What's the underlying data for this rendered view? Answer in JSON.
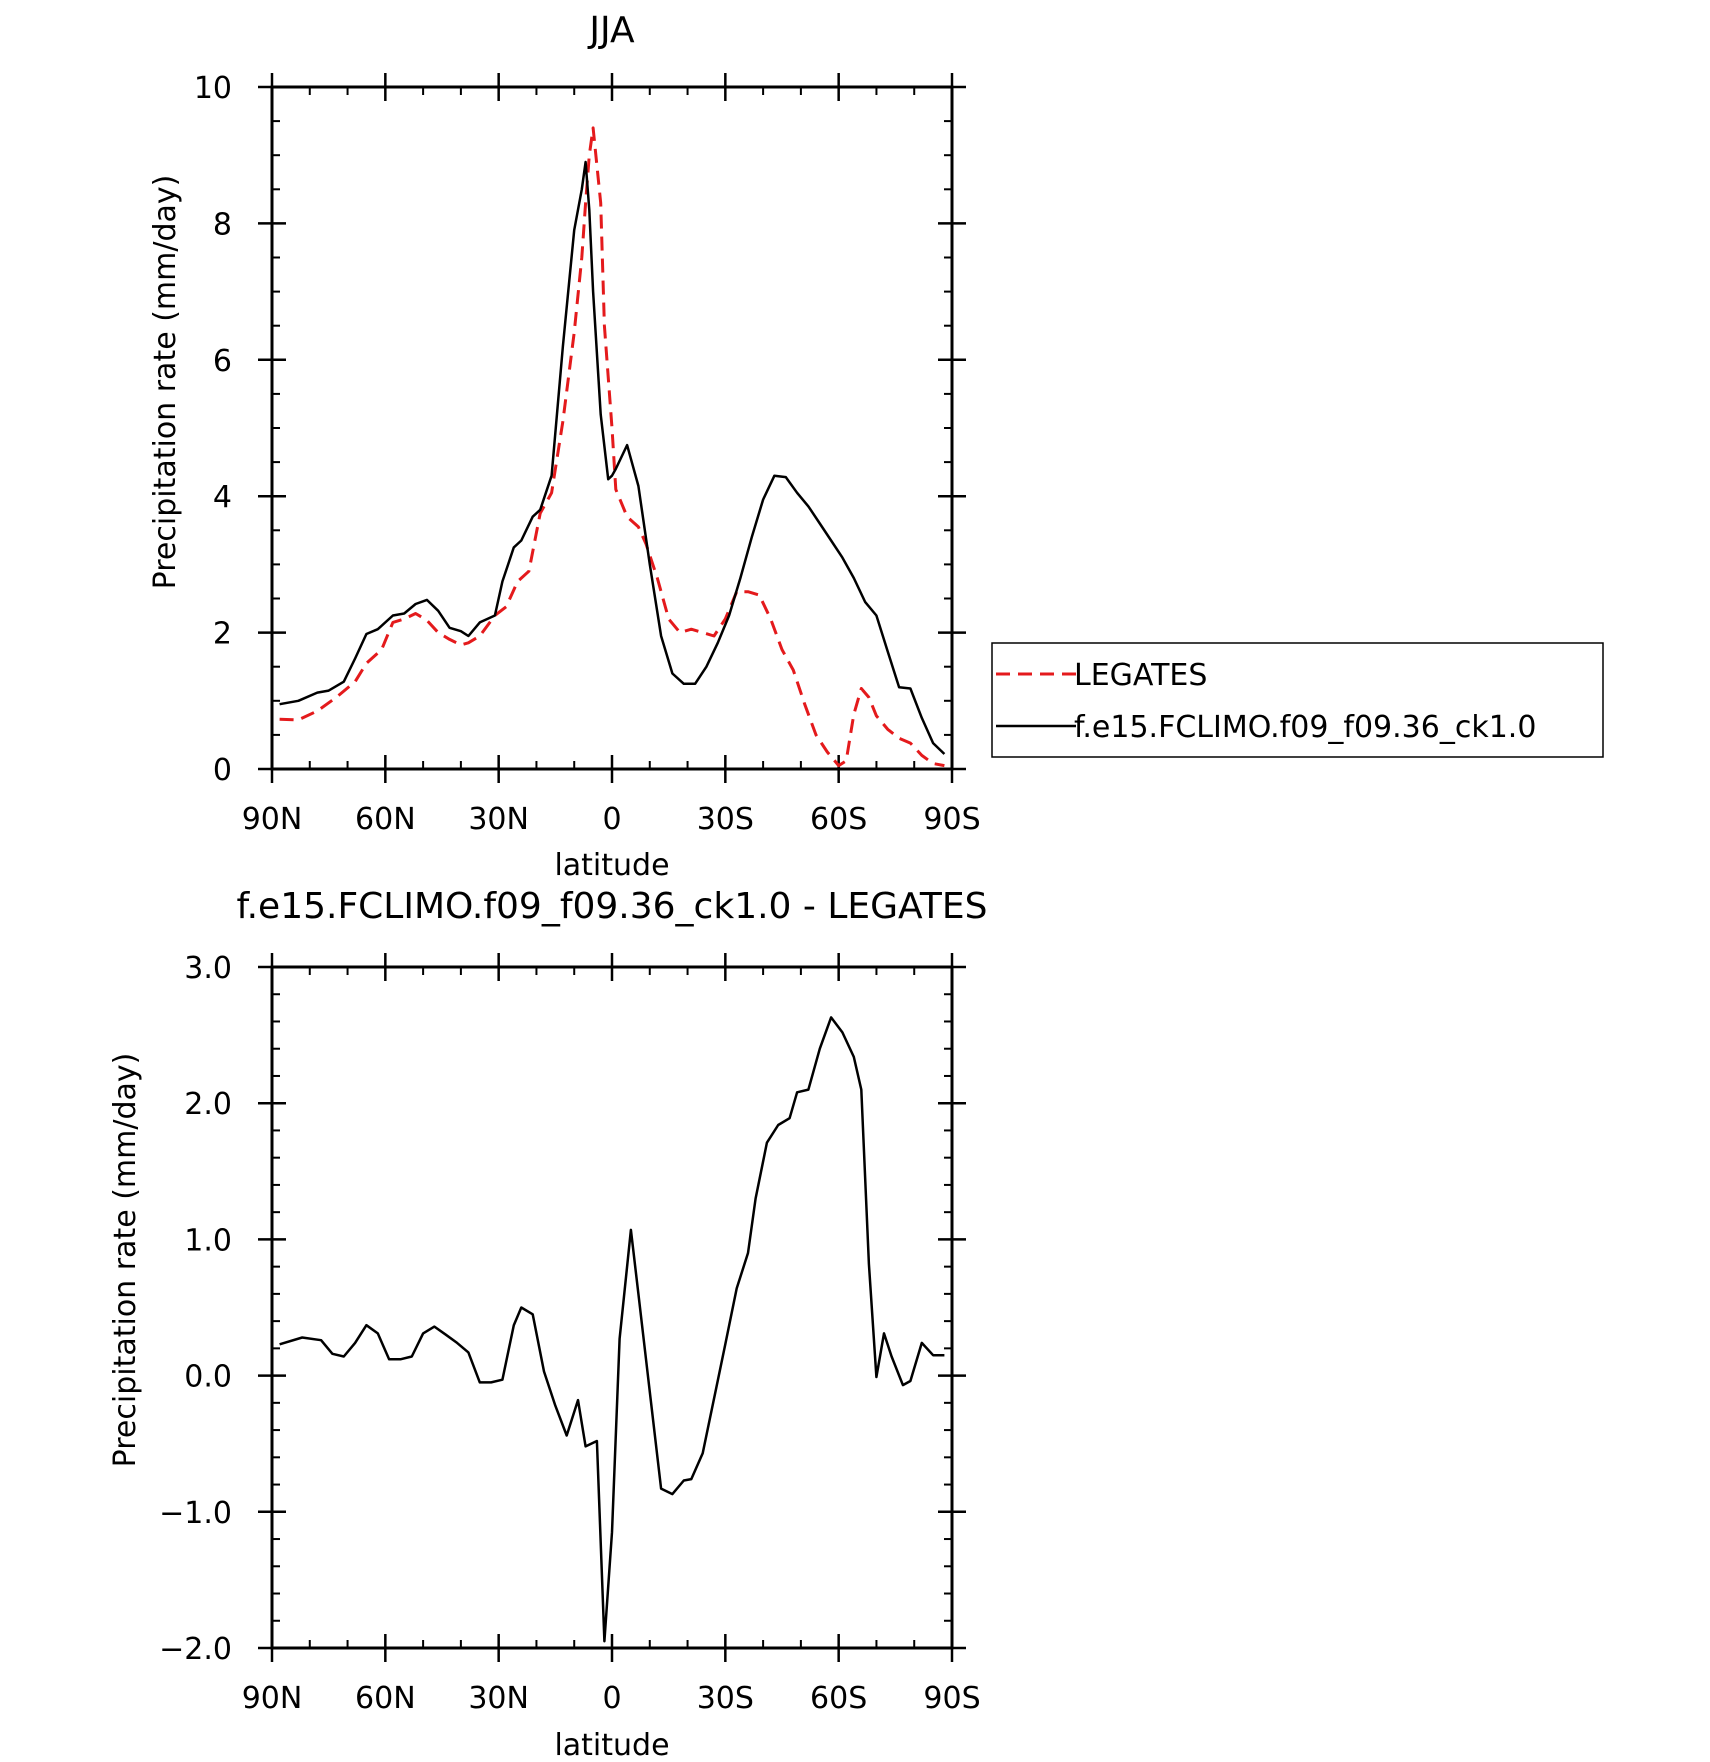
{
  "chart_data": [
    {
      "type": "line",
      "title": "JJA",
      "xlabel": "latitude",
      "ylabel": "Precipitation rate (mm/day)",
      "xlim": [
        90,
        -90
      ],
      "ylim": [
        0,
        10
      ],
      "x_ticks": [
        {
          "value": 90,
          "label": "90N"
        },
        {
          "value": 60,
          "label": "60N"
        },
        {
          "value": 30,
          "label": "30N"
        },
        {
          "value": 0,
          "label": "0"
        },
        {
          "value": -30,
          "label": "30S"
        },
        {
          "value": -60,
          "label": "60S"
        },
        {
          "value": -90,
          "label": "90S"
        }
      ],
      "y_ticks": [
        {
          "value": 0,
          "label": "0"
        },
        {
          "value": 2,
          "label": "2"
        },
        {
          "value": 4,
          "label": "4"
        },
        {
          "value": 6,
          "label": "6"
        },
        {
          "value": 8,
          "label": "8"
        },
        {
          "value": 10,
          "label": "10"
        }
      ],
      "grid": false,
      "legend": {
        "placement": "outside-right",
        "entries": [
          {
            "name": "LEGATES",
            "color": "#e41a1c",
            "dash": "dashed"
          },
          {
            "name": "f.e15.FCLIMO.f09_f09.36_ck1.0",
            "color": "#000000",
            "dash": "solid"
          }
        ]
      },
      "series": [
        {
          "name": "LEGATES",
          "color": "#e41a1c",
          "dash": "dashed",
          "x": [
            88,
            83,
            78,
            73,
            68,
            65,
            61,
            58,
            55,
            52,
            49,
            46,
            43,
            40,
            38,
            35,
            31,
            28,
            25,
            22,
            19,
            16,
            13,
            10,
            8,
            7,
            6,
            5,
            3,
            2,
            0,
            -1,
            -4,
            -7,
            -9,
            -12,
            -15,
            -18,
            -21,
            -24,
            -27,
            -30,
            -33,
            -36,
            -39,
            -42,
            -45,
            -48,
            -51,
            -54,
            -57,
            -60,
            -62,
            -64,
            -66,
            -68,
            -70,
            -73,
            -76,
            -79,
            -82,
            -85,
            -88
          ],
          "y": [
            0.73,
            0.72,
            0.85,
            1.05,
            1.28,
            1.55,
            1.75,
            2.15,
            2.2,
            2.28,
            2.18,
            2.0,
            1.9,
            1.82,
            1.85,
            1.95,
            2.25,
            2.38,
            2.75,
            2.9,
            3.75,
            4.05,
            5.1,
            6.4,
            7.5,
            8.3,
            9.0,
            9.4,
            8.3,
            6.5,
            5.0,
            4.1,
            3.7,
            3.55,
            3.3,
            2.8,
            2.2,
            2.0,
            2.05,
            2.0,
            1.95,
            2.2,
            2.6,
            2.6,
            2.55,
            2.2,
            1.75,
            1.45,
            0.95,
            0.5,
            0.25,
            0.05,
            0.12,
            0.8,
            1.18,
            1.05,
            0.78,
            0.58,
            0.45,
            0.38,
            0.2,
            0.08,
            0.05
          ]
        },
        {
          "name": "f.e15.FCLIMO.f09_f09.36_ck1.0",
          "color": "#000000",
          "dash": "solid",
          "x": [
            88,
            83,
            78,
            75,
            71,
            68,
            65,
            62,
            58,
            55,
            52,
            49,
            46,
            43,
            40,
            38,
            35,
            31,
            29,
            26,
            24,
            21,
            19,
            16,
            13,
            10,
            8,
            7,
            6,
            5,
            3,
            1,
            0,
            -1,
            -4,
            -7,
            -10,
            -13,
            -16,
            -19,
            -22,
            -25,
            -28,
            -31,
            -34,
            -37,
            -40,
            -43,
            -46,
            -49,
            -52,
            -55,
            -58,
            -61,
            -64,
            -67,
            -70,
            -73,
            -76,
            -79,
            -82,
            -85,
            -88
          ],
          "y": [
            0.95,
            1.0,
            1.12,
            1.15,
            1.28,
            1.62,
            1.98,
            2.05,
            2.25,
            2.28,
            2.42,
            2.48,
            2.32,
            2.07,
            2.02,
            1.95,
            2.15,
            2.25,
            2.75,
            3.25,
            3.35,
            3.7,
            3.8,
            4.3,
            6.2,
            7.9,
            8.5,
            8.9,
            8.2,
            7.0,
            5.2,
            4.25,
            4.3,
            4.4,
            4.75,
            4.15,
            3.0,
            1.95,
            1.4,
            1.25,
            1.25,
            1.5,
            1.85,
            2.25,
            2.8,
            3.4,
            3.95,
            4.3,
            4.28,
            4.05,
            3.85,
            3.6,
            3.35,
            3.1,
            2.8,
            2.45,
            2.25,
            1.72,
            1.2,
            1.18,
            0.75,
            0.38,
            0.22
          ]
        }
      ]
    },
    {
      "type": "line",
      "title": "f.e15.FCLIMO.f09_f09.36_ck1.0 - LEGATES",
      "xlabel": "latitude",
      "ylabel": "Precipitation rate (mm/day)",
      "xlim": [
        90,
        -90
      ],
      "ylim": [
        -2.0,
        3.0
      ],
      "x_ticks": [
        {
          "value": 90,
          "label": "90N"
        },
        {
          "value": 60,
          "label": "60N"
        },
        {
          "value": 30,
          "label": "30N"
        },
        {
          "value": 0,
          "label": "0"
        },
        {
          "value": -30,
          "label": "30S"
        },
        {
          "value": -60,
          "label": "60S"
        },
        {
          "value": -90,
          "label": "90S"
        }
      ],
      "y_ticks": [
        {
          "value": -2.0,
          "label": "−2.0"
        },
        {
          "value": -1.0,
          "label": "−1.0"
        },
        {
          "value": 0.0,
          "label": "0.0"
        },
        {
          "value": 1.0,
          "label": "1.0"
        },
        {
          "value": 2.0,
          "label": "2.0"
        },
        {
          "value": 3.0,
          "label": "3.0"
        }
      ],
      "grid": false,
      "series": [
        {
          "color": "#000000",
          "dash": "solid",
          "x": [
            88,
            82,
            77,
            74,
            71,
            68,
            65,
            62,
            59,
            56,
            53,
            50,
            47,
            44,
            41,
            38,
            35,
            32,
            29,
            26,
            24,
            21,
            18,
            15,
            12,
            9,
            7,
            4,
            2,
            0,
            -2,
            -5,
            -7,
            -10,
            -13,
            -16,
            -19,
            -21,
            -24,
            -27,
            -30,
            -33,
            -36,
            -38,
            -41,
            -44,
            -47,
            -49,
            -52,
            -55,
            -58,
            -61,
            -64,
            -66,
            -68,
            -70,
            -72,
            -74,
            -77,
            -79,
            -82,
            -85,
            -88
          ],
          "y": [
            0.23,
            0.28,
            0.26,
            0.16,
            0.14,
            0.24,
            0.37,
            0.31,
            0.12,
            0.12,
            0.14,
            0.31,
            0.36,
            0.3,
            0.24,
            0.17,
            -0.05,
            -0.05,
            -0.03,
            0.37,
            0.5,
            0.45,
            0.03,
            -0.22,
            -0.44,
            -0.18,
            -0.52,
            -0.48,
            -1.95,
            -1.15,
            0.27,
            1.07,
            0.6,
            -0.12,
            -0.83,
            -0.87,
            -0.77,
            -0.76,
            -0.57,
            -0.17,
            0.23,
            0.64,
            0.9,
            1.3,
            1.71,
            1.84,
            1.89,
            2.08,
            2.1,
            2.4,
            2.63,
            2.52,
            2.34,
            2.1,
            0.82,
            -0.01,
            0.31,
            0.14,
            -0.07,
            -0.04,
            0.24,
            0.15,
            0.15
          ]
        }
      ]
    }
  ]
}
